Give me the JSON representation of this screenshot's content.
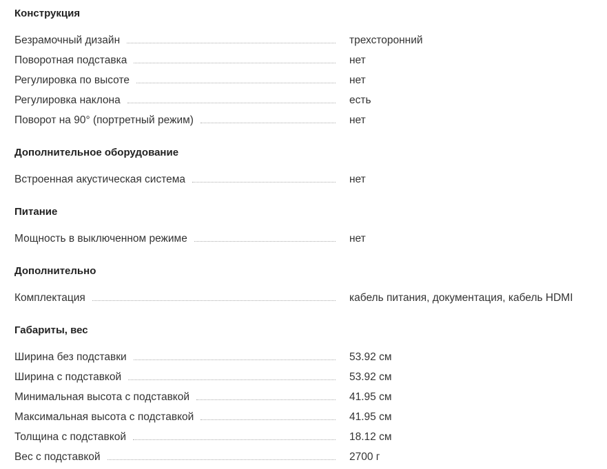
{
  "sections": [
    {
      "title": "Конструкция",
      "rows": [
        {
          "label": "Безрамочный дизайн",
          "value": "трехсторонний"
        },
        {
          "label": "Поворотная подставка",
          "value": "нет"
        },
        {
          "label": "Регулировка по высоте",
          "value": "нет"
        },
        {
          "label": "Регулировка наклона",
          "value": "есть"
        },
        {
          "label": "Поворот на 90° (портретный режим)",
          "value": "нет"
        }
      ]
    },
    {
      "title": "Дополнительное оборудование",
      "rows": [
        {
          "label": "Встроенная акустическая система",
          "value": "нет"
        }
      ]
    },
    {
      "title": "Питание",
      "rows": [
        {
          "label": "Мощность в выключенном режиме",
          "value": "нет"
        }
      ]
    },
    {
      "title": "Дополнительно",
      "rows": [
        {
          "label": "Комплектация",
          "value": "кабель питания, документация, кабель HDMI"
        }
      ]
    },
    {
      "title": "Габариты, вес",
      "rows": [
        {
          "label": "Ширина без подставки",
          "value": "53.92 см"
        },
        {
          "label": "Ширина с подставкой",
          "value": "53.92 см"
        },
        {
          "label": "Минимальная высота с подставкой",
          "value": "41.95 см"
        },
        {
          "label": "Максимальная высота с подставкой",
          "value": "41.95 см"
        },
        {
          "label": "Толщина с подставкой",
          "value": "18.12 см"
        },
        {
          "label": "Вес с подставкой",
          "value": "2700 г"
        }
      ]
    }
  ]
}
